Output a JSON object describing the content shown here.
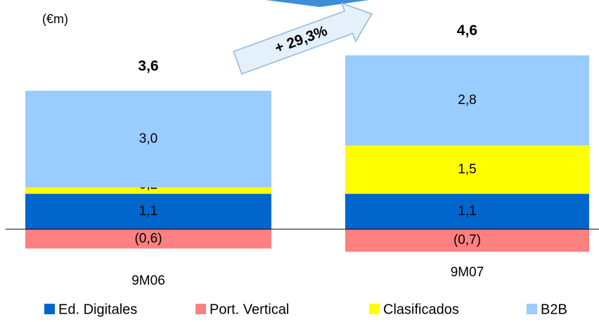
{
  "chart_data": {
    "type": "stacked_bar",
    "unit_label": "(€m)",
    "annotation": "+ 29,3%",
    "categories": [
      "9M06",
      "9M07"
    ],
    "series": [
      {
        "name": "Ed. Digitales",
        "color": "#0066cc",
        "values": [
          1.1,
          1.1
        ],
        "value_labels": [
          "1,1",
          "1,1"
        ]
      },
      {
        "name": "Port. Vertical",
        "color": "#ff8080",
        "values": [
          -0.6,
          -0.7
        ],
        "value_labels": [
          "(0,6)",
          "(0,7)"
        ]
      },
      {
        "name": "Clasificados",
        "color": "#ffff00",
        "values": [
          0.2,
          1.5
        ],
        "value_labels": [
          "0,2",
          "1,5"
        ]
      },
      {
        "name": "B2B",
        "color": "#99ccff",
        "values": [
          3.0,
          2.8
        ],
        "value_labels": [
          "3,0",
          "2,8"
        ]
      }
    ],
    "totals": [
      3.6,
      4.6
    ],
    "total_labels": [
      "3,6",
      "4,6"
    ]
  }
}
